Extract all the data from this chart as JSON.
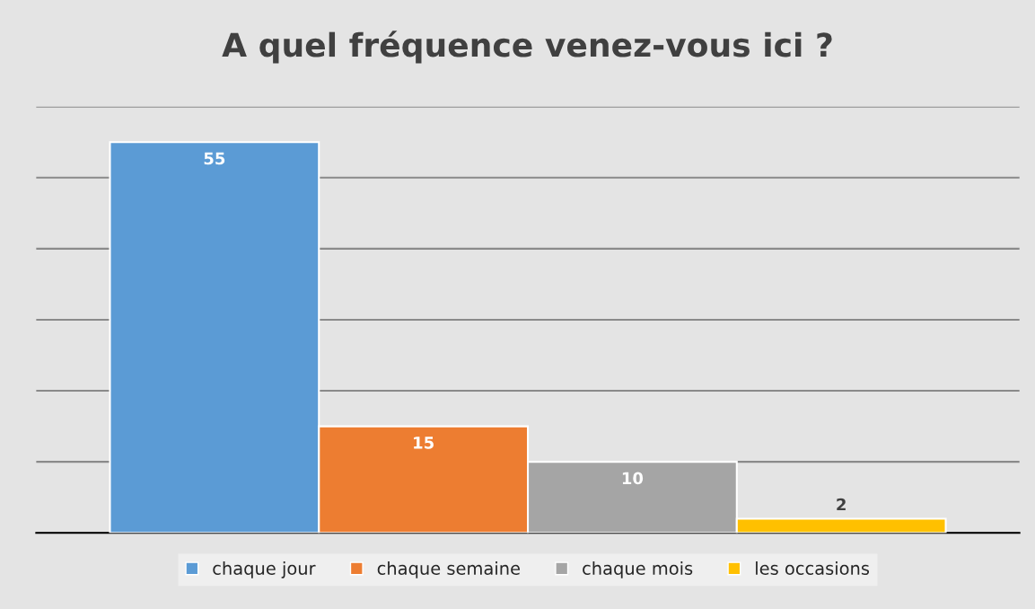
{
  "chart_data": {
    "type": "bar",
    "title": "A quel fréquence venez-vous ici ?",
    "categories": [
      null
    ],
    "series": [
      {
        "name": "chaque jour",
        "color": "#5b9bd5",
        "values": [
          55
        ]
      },
      {
        "name": "chaque semaine",
        "color": "#ed7d31",
        "values": [
          15
        ]
      },
      {
        "name": "chaque mois",
        "color": "#a5a5a5",
        "values": [
          10
        ]
      },
      {
        "name": "les occasions",
        "color": "#ffc000",
        "values": [
          2
        ]
      }
    ],
    "ylim": [
      0,
      60
    ],
    "yticks": [
      {
        "value": 0,
        "label": null
      },
      {
        "value": 10,
        "label": null
      },
      {
        "value": 20,
        "label": null
      },
      {
        "value": 30,
        "label": null
      },
      {
        "value": 40,
        "label": null
      },
      {
        "value": 50,
        "label": null
      },
      {
        "value": 60,
        "label": null
      }
    ],
    "grid": "y",
    "legend": "bottom",
    "data_labels": true
  }
}
